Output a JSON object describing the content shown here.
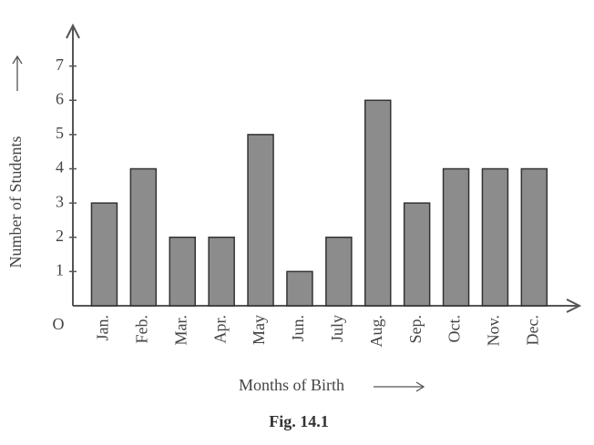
{
  "chart_data": {
    "type": "bar",
    "caption": "Fig. 14.1",
    "x_label": "Months of Birth",
    "y_label": "Number of Students",
    "origin_label": "O",
    "categories": [
      "Jan.",
      "Feb.",
      "Mar.",
      "Apr.",
      "May",
      "Jun.",
      "July",
      "Aug.",
      "Sep.",
      "Oct.",
      "Nov.",
      "Dec."
    ],
    "values": [
      3,
      4,
      2,
      2,
      5,
      1,
      2,
      6,
      3,
      4,
      4,
      4
    ],
    "color": "#8c8c8c",
    "ylim": [
      0,
      8
    ],
    "yticks": [
      1,
      2,
      3,
      4,
      5,
      6,
      7
    ],
    "grid": false
  }
}
